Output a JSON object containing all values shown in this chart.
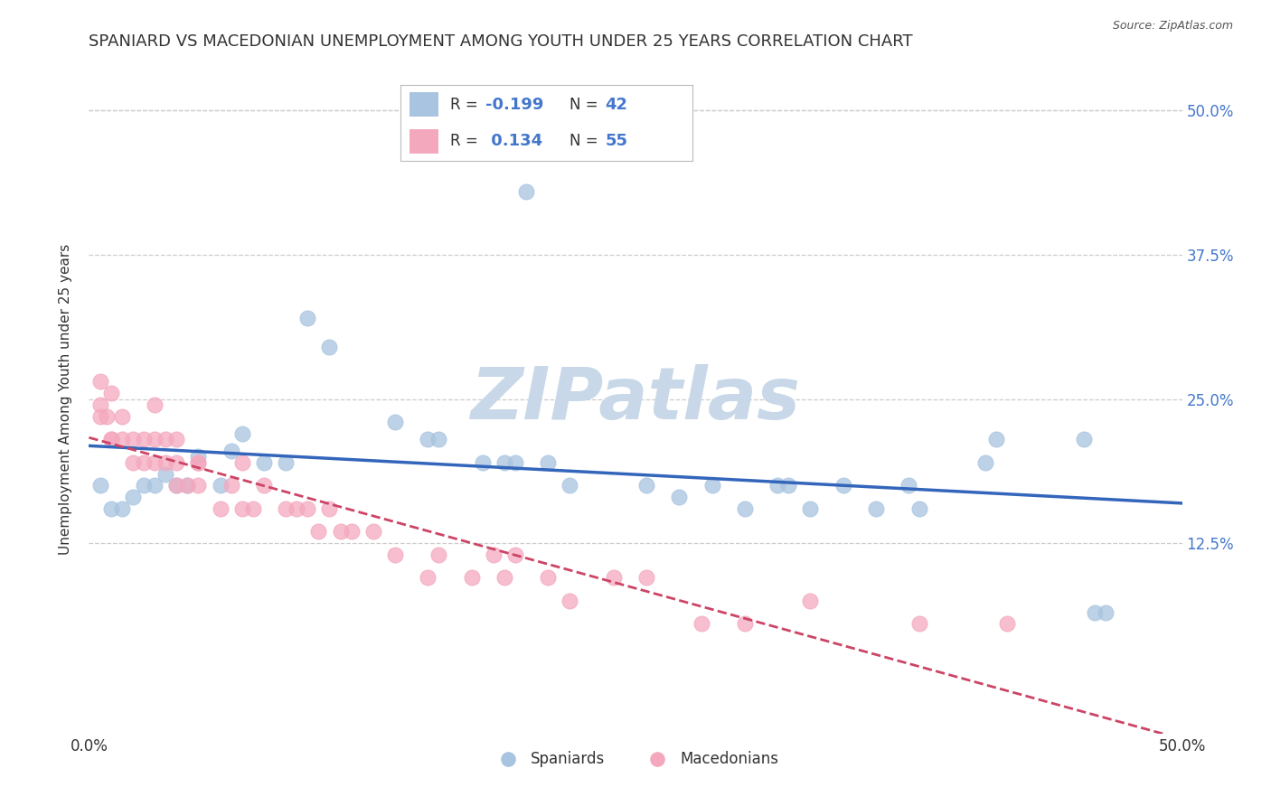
{
  "title": "SPANIARD VS MACEDONIAN UNEMPLOYMENT AMONG YOUTH UNDER 25 YEARS CORRELATION CHART",
  "source": "Source: ZipAtlas.com",
  "ylabel": "Unemployment Among Youth under 25 years",
  "xlim": [
    0.0,
    0.5
  ],
  "ylim": [
    -0.04,
    0.54
  ],
  "xticks": [
    0.0,
    0.125,
    0.25,
    0.375,
    0.5
  ],
  "xticklabels_left": [
    "0.0%",
    "",
    "",
    "",
    "50.0%"
  ],
  "yticks": [
    0.125,
    0.25,
    0.375,
    0.5
  ],
  "yticklabels": [
    "12.5%",
    "25.0%",
    "37.5%",
    "50.0%"
  ],
  "legend_R1": "-0.199",
  "legend_N1": "42",
  "legend_R2": "0.134",
  "legend_N2": "55",
  "spaniards_color": "#a8c4e0",
  "macedonians_color": "#f4a8be",
  "spaniards_line_color": "#3366bb",
  "macedonians_line_color": "#cc4466",
  "macedonians_line_dash": true,
  "watermark": "ZIPatlas",
  "watermark_color": "#c8d8e8",
  "title_fontsize": 13,
  "axis_label_fontsize": 11,
  "tick_fontsize": 12,
  "tick_color": "#4477cc",
  "spaniards_x": [
    0.005,
    0.01,
    0.015,
    0.02,
    0.025,
    0.03,
    0.035,
    0.04,
    0.045,
    0.05,
    0.06,
    0.065,
    0.07,
    0.08,
    0.09,
    0.1,
    0.11,
    0.14,
    0.155,
    0.16,
    0.18,
    0.19,
    0.195,
    0.2,
    0.21,
    0.22,
    0.255,
    0.27,
    0.285,
    0.3,
    0.315,
    0.32,
    0.33,
    0.345,
    0.36,
    0.375,
    0.38,
    0.41,
    0.415,
    0.455,
    0.46,
    0.465
  ],
  "spaniards_y": [
    0.175,
    0.155,
    0.155,
    0.165,
    0.175,
    0.175,
    0.185,
    0.175,
    0.175,
    0.2,
    0.175,
    0.205,
    0.22,
    0.195,
    0.195,
    0.32,
    0.295,
    0.23,
    0.215,
    0.215,
    0.195,
    0.195,
    0.195,
    0.43,
    0.195,
    0.175,
    0.175,
    0.165,
    0.175,
    0.155,
    0.175,
    0.175,
    0.155,
    0.175,
    0.155,
    0.175,
    0.155,
    0.195,
    0.215,
    0.215,
    0.065,
    0.065
  ],
  "macedonians_x": [
    0.005,
    0.005,
    0.005,
    0.008,
    0.01,
    0.01,
    0.01,
    0.015,
    0.015,
    0.02,
    0.02,
    0.025,
    0.025,
    0.03,
    0.03,
    0.03,
    0.035,
    0.035,
    0.04,
    0.04,
    0.04,
    0.045,
    0.05,
    0.05,
    0.05,
    0.06,
    0.065,
    0.07,
    0.07,
    0.075,
    0.08,
    0.09,
    0.095,
    0.1,
    0.105,
    0.11,
    0.115,
    0.12,
    0.13,
    0.14,
    0.155,
    0.16,
    0.175,
    0.185,
    0.19,
    0.195,
    0.21,
    0.22,
    0.24,
    0.255,
    0.28,
    0.3,
    0.33,
    0.38,
    0.42
  ],
  "macedonians_y": [
    0.265,
    0.245,
    0.235,
    0.235,
    0.215,
    0.215,
    0.255,
    0.235,
    0.215,
    0.215,
    0.195,
    0.195,
    0.215,
    0.195,
    0.215,
    0.245,
    0.195,
    0.215,
    0.175,
    0.195,
    0.215,
    0.175,
    0.195,
    0.175,
    0.195,
    0.155,
    0.175,
    0.155,
    0.195,
    0.155,
    0.175,
    0.155,
    0.155,
    0.155,
    0.135,
    0.155,
    0.135,
    0.135,
    0.135,
    0.115,
    0.095,
    0.115,
    0.095,
    0.115,
    0.095,
    0.115,
    0.095,
    0.075,
    0.095,
    0.095,
    0.055,
    0.055,
    0.075,
    0.055,
    0.055
  ]
}
